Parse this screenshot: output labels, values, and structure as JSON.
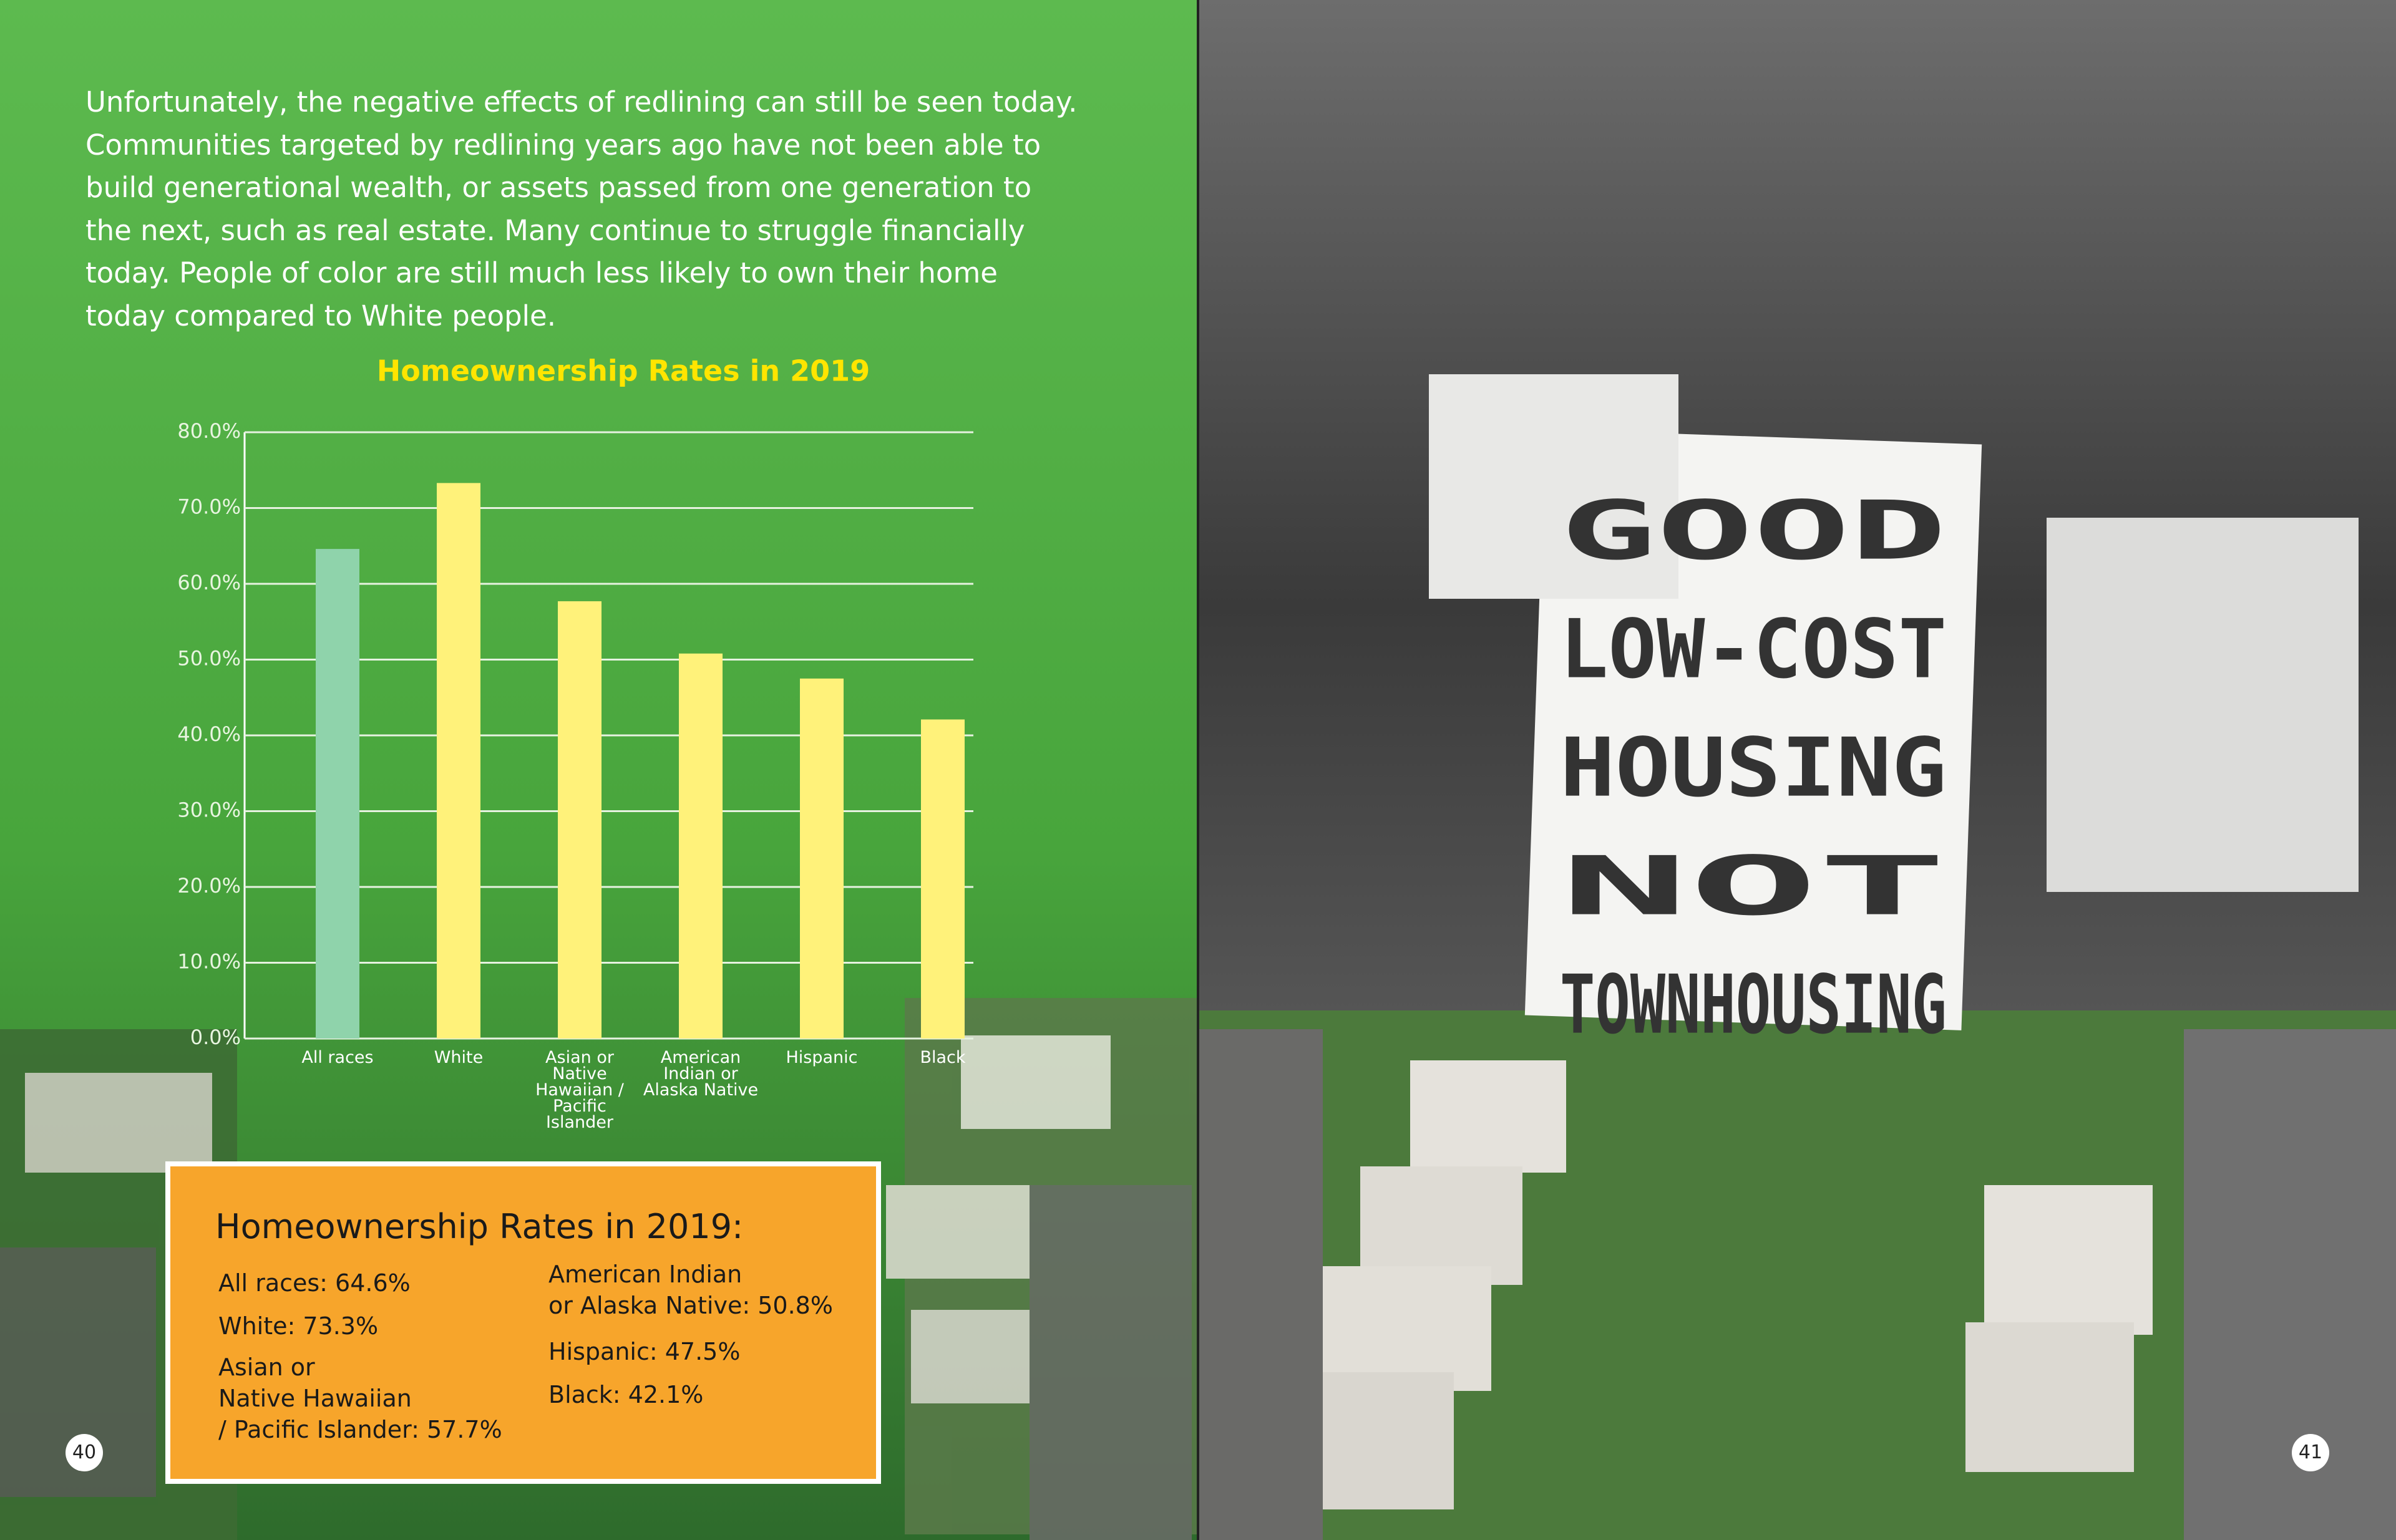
{
  "body_text": "Unfortunately, the negative effects of redlining can still be seen today. Communities targeted by redlining years ago have not been able to build generational wealth, or assets passed from one generation to the next, such as real estate. Many continue to struggle financially today. People of color are still much less likely to own their home today compared to White people.",
  "chart_data": {
    "type": "bar",
    "title": "Homeownership Rates in 2019",
    "categories": [
      "All races",
      "White",
      "Asian or Native Hawaiian / Pacific Islander",
      "American Indian or Alaska Native",
      "Hispanic",
      "Black"
    ],
    "values": [
      64.6,
      73.3,
      57.7,
      50.8,
      47.5,
      42.1
    ],
    "colors": [
      "#8fd3ab",
      "#fff27a",
      "#fff27a",
      "#fff27a",
      "#fff27a",
      "#fff27a"
    ],
    "ylim": [
      0,
      80
    ],
    "yticks": [
      {
        "value": 0,
        "label": "0.0%"
      },
      {
        "value": 10,
        "label": "10.0%"
      },
      {
        "value": 20,
        "label": "20.0%"
      },
      {
        "value": 30,
        "label": "30.0%"
      },
      {
        "value": 40,
        "label": "40.0%"
      },
      {
        "value": 50,
        "label": "50.0%"
      },
      {
        "value": 60,
        "label": "60.0%"
      },
      {
        "value": 70,
        "label": "70.0%"
      },
      {
        "value": 80,
        "label": "80.0%"
      }
    ],
    "grid": true
  },
  "info_box": {
    "title": "Homeownership Rates in 2019:",
    "left_items": [
      "All races: 64.6%",
      "White: 73.3%",
      "Asian or\nNative Hawaiian\n/ Pacific Islander: 57.7%"
    ],
    "right_items": [
      "American Indian\nor Alaska Native: 50.8%",
      "Hispanic: 47.5%",
      "Black: 42.1%"
    ]
  },
  "page_numbers": [
    "40",
    "41"
  ],
  "photo_sign": [
    "GOOD",
    "LOW-COST",
    "HOUSING",
    "NOT",
    "TOWNHOUSING"
  ]
}
